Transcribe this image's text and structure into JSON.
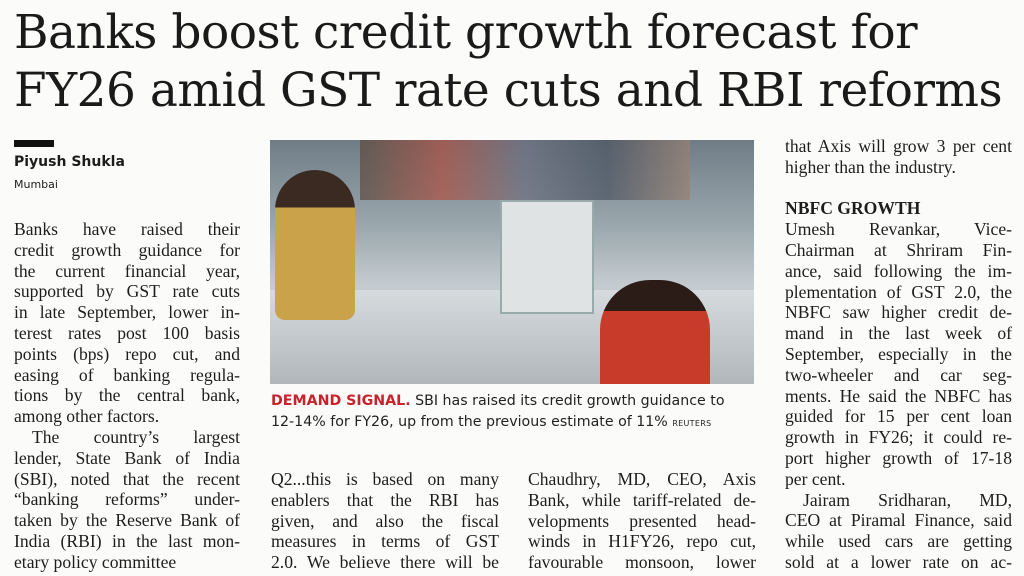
{
  "headline": {
    "line1": "Banks boost credit growth forecast for",
    "line2": "FY26 amid GST rate cuts and RBI reforms"
  },
  "byline": {
    "author": "Piyush Shukla",
    "dateline": "Mumbai"
  },
  "photo": {
    "caption_kicker": "DEMAND SIGNAL.",
    "caption_line1": "SBI has raised its credit growth guidance to",
    "caption_line2": "12-14% for FY26, up from the previous estimate of 11%",
    "credit": "REUTERS",
    "kicker_color": "#c8232c"
  },
  "columns": {
    "col1": [
      "Banks have raised their",
      "credit growth guidance for",
      "the current financial year,",
      "supported by GST rate cuts",
      "in late September, lower in-",
      "terest rates post 100 basis",
      "points (bps) repo cut, and",
      "easing of banking regula-",
      "tions by the central bank,",
      "among other factors.",
      "The country’s largest",
      "lender, State Bank of India",
      "(SBI), noted that the recent",
      "“banking reforms” under-",
      "taken by the Reserve Bank of",
      "India (RBI) in the last mon-",
      "etary policy committee"
    ],
    "col2": [
      "Q2...this is based on many",
      "enablers that the RBI has",
      "given, and also the fiscal",
      "measures in terms of GST",
      "2.0. We believe there will be"
    ],
    "col3": [
      "Chaudhry, MD, CEO, Axis",
      "Bank, while tariff-related de-",
      "velopments presented head-",
      "winds in H1FY26, repo cut,",
      "favourable monsoon, lower"
    ],
    "col4": [
      "that Axis will grow 3 per cent",
      "higher than the industry.",
      "",
      "NBFC GROWTH",
      "Umesh Revankar, Vice-",
      "Chairman at Shriram Fin-",
      "ance, said following the im-",
      "plementation of GST 2.0, the",
      "NBFC saw higher credit de-",
      "mand in the last week of",
      "September, especially in the",
      "two-wheeler and car seg-",
      "ments. He said the NBFC has",
      "guided for 15 per cent loan",
      "growth in FY26; it could re-",
      "port higher growth of 17-18",
      "per cent.",
      "Jairam Sridharan, MD,",
      "CEO at Piramal Finance, said",
      "while used cars are getting",
      "sold at a lower rate on ac-"
    ]
  }
}
